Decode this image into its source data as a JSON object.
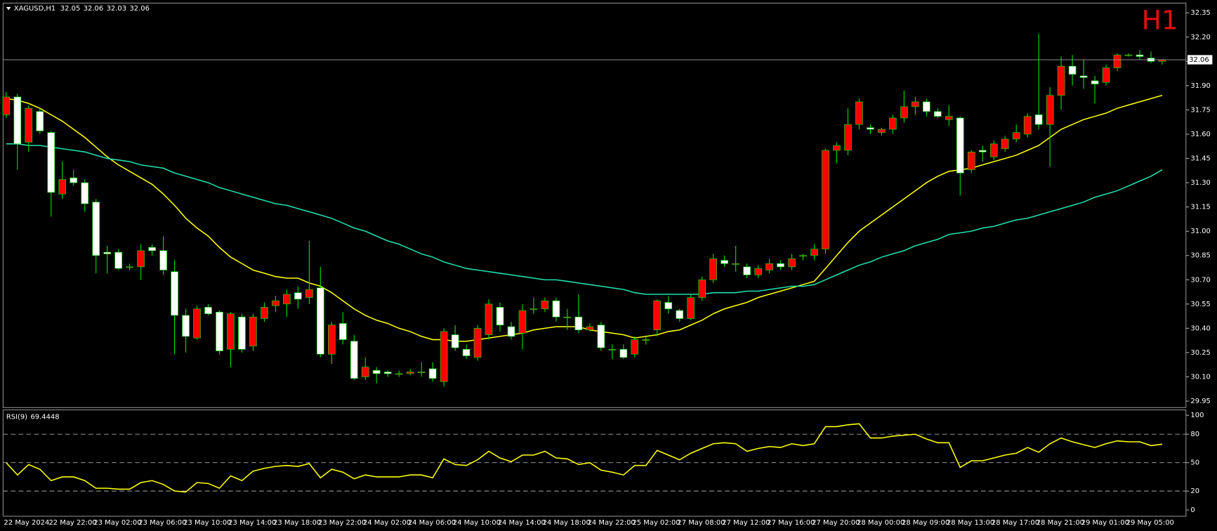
{
  "chart_data": [
    {
      "type": "candlestick",
      "symbol": "XAGUSD,H1",
      "timeframe_label": "H1",
      "categories": [
        "22 May 2024",
        null,
        null,
        null,
        "22 May 22:00",
        null,
        null,
        null,
        "23 May 02:00",
        null,
        null,
        null,
        "23 May 06:00",
        null,
        null,
        null,
        "23 May 10:00",
        null,
        null,
        null,
        "23 May 14:00",
        null,
        null,
        null,
        "23 May 18:00",
        null,
        null,
        null,
        "23 May 22:00",
        null,
        null,
        null,
        "24 May 02:00",
        null,
        null,
        null,
        "24 May 06:00",
        null,
        null,
        null,
        "24 May 10:00",
        null,
        null,
        null,
        "24 May 14:00",
        null,
        null,
        null,
        "24 May 18:00",
        null,
        null,
        null,
        "24 May 22:00",
        null,
        null,
        null,
        "25 May 02:00",
        null,
        null,
        null,
        "27 May 08:00",
        null,
        null,
        null,
        "27 May 12:00",
        null,
        null,
        null,
        "27 May 16:00",
        null,
        null,
        null,
        "27 May 20:00",
        null,
        null,
        null,
        "28 May 00:00",
        null,
        null,
        null,
        "28 May 09:00",
        null,
        null,
        null,
        "28 May 13:00",
        null,
        null,
        null,
        "28 May 17:00",
        null,
        null,
        null,
        "28 May 21:00",
        null,
        null,
        null,
        "29 May 01:00",
        null,
        null,
        null,
        "29 May 05:00",
        null,
        null,
        null
      ],
      "open": [
        31.72,
        31.83,
        31.55,
        31.74,
        31.61,
        31.23,
        31.33,
        31.3,
        31.18,
        30.87,
        30.87,
        30.78,
        30.78,
        30.9,
        30.88,
        30.75,
        30.48,
        30.34,
        30.53,
        30.5,
        30.27,
        30.47,
        30.29,
        30.46,
        30.54,
        30.55,
        30.62,
        30.59,
        30.65,
        30.24,
        30.43,
        30.32,
        30.1,
        30.14,
        30.13,
        30.12,
        30.12,
        30.13,
        30.15,
        30.07,
        30.36,
        30.27,
        30.22,
        30.36,
        30.53,
        30.41,
        30.37,
        30.52,
        30.52,
        30.57,
        30.47,
        30.47,
        30.39,
        30.42,
        30.27,
        30.27,
        30.24,
        30.33,
        30.39,
        30.56,
        30.51,
        30.46,
        30.59,
        30.7,
        30.82,
        30.8,
        30.78,
        30.73,
        30.76,
        30.8,
        30.78,
        30.85,
        30.85,
        30.89,
        31.5,
        31.5,
        31.66,
        31.64,
        31.61,
        31.63,
        31.7,
        31.77,
        31.8,
        31.74,
        31.69,
        31.7,
        31.38,
        31.5,
        31.46,
        31.51,
        31.57,
        31.6,
        31.72,
        31.66,
        31.84,
        32.02,
        31.96,
        31.93,
        31.92,
        32.01,
        32.09,
        32.09,
        32.07,
        32.05
      ],
      "high": [
        31.86,
        31.85,
        31.78,
        31.76,
        31.62,
        31.43,
        31.38,
        31.32,
        31.2,
        30.91,
        30.89,
        30.8,
        30.92,
        30.92,
        30.97,
        30.82,
        30.52,
        30.54,
        30.55,
        30.51,
        30.5,
        30.49,
        30.49,
        30.56,
        30.6,
        30.64,
        30.66,
        30.94,
        30.78,
        30.44,
        30.5,
        30.36,
        30.22,
        30.16,
        30.14,
        30.14,
        30.15,
        30.19,
        30.19,
        30.4,
        30.42,
        30.3,
        30.42,
        30.58,
        30.56,
        30.44,
        30.55,
        30.59,
        30.59,
        30.59,
        30.52,
        30.61,
        30.43,
        30.44,
        30.3,
        30.3,
        30.35,
        30.35,
        30.58,
        30.6,
        30.52,
        30.61,
        30.72,
        30.86,
        30.85,
        30.91,
        30.8,
        30.79,
        30.83,
        30.82,
        30.86,
        30.86,
        30.92,
        31.51,
        31.55,
        31.76,
        31.82,
        31.66,
        31.64,
        31.72,
        31.87,
        31.83,
        31.82,
        31.76,
        31.78,
        31.71,
        31.5,
        31.53,
        31.56,
        31.59,
        31.66,
        31.73,
        32.22,
        31.89,
        32.08,
        32.09,
        32.06,
        31.96,
        32.03,
        32.1,
        32.1,
        32.12,
        32.11,
        32.06
      ],
      "low": [
        31.7,
        31.38,
        31.49,
        31.6,
        31.09,
        31.2,
        31.28,
        31.12,
        30.74,
        30.74,
        30.76,
        30.76,
        30.7,
        30.85,
        30.73,
        30.24,
        30.25,
        30.33,
        30.48,
        30.24,
        30.16,
        30.25,
        30.26,
        30.44,
        30.5,
        30.47,
        30.52,
        30.55,
        30.22,
        30.18,
        30.3,
        30.08,
        30.08,
        30.06,
        30.1,
        30.1,
        30.11,
        30.1,
        30.07,
        30.04,
        30.26,
        30.21,
        30.2,
        30.33,
        30.38,
        30.33,
        30.27,
        30.49,
        30.5,
        30.44,
        30.39,
        30.37,
        30.38,
        30.26,
        30.21,
        30.21,
        30.22,
        30.3,
        30.35,
        30.49,
        30.44,
        30.45,
        30.57,
        30.68,
        30.78,
        30.75,
        30.71,
        30.71,
        30.74,
        30.76,
        30.76,
        30.82,
        30.82,
        30.86,
        31.42,
        31.47,
        31.63,
        31.6,
        31.59,
        31.6,
        31.67,
        31.72,
        31.71,
        31.7,
        31.65,
        31.22,
        31.36,
        31.43,
        31.44,
        31.49,
        31.55,
        31.58,
        31.63,
        31.4,
        31.75,
        31.9,
        31.88,
        31.79,
        31.9,
        31.99,
        32.08,
        32.06,
        32.04,
        32.03
      ],
      "close": [
        31.83,
        31.54,
        31.76,
        31.62,
        31.24,
        31.32,
        31.3,
        31.17,
        30.85,
        30.86,
        30.77,
        30.78,
        30.88,
        30.88,
        30.76,
        30.48,
        30.35,
        30.52,
        30.49,
        30.26,
        30.49,
        30.27,
        30.47,
        30.53,
        30.57,
        30.61,
        30.58,
        30.64,
        30.24,
        30.42,
        30.33,
        30.09,
        30.16,
        30.12,
        30.12,
        30.12,
        30.13,
        30.13,
        30.09,
        30.38,
        30.28,
        30.23,
        30.4,
        30.55,
        30.42,
        30.35,
        30.51,
        30.52,
        30.57,
        30.47,
        30.47,
        30.39,
        30.41,
        30.28,
        30.27,
        30.22,
        30.33,
        30.33,
        30.57,
        30.52,
        30.46,
        30.59,
        30.7,
        30.83,
        30.8,
        30.8,
        30.73,
        30.77,
        30.8,
        30.78,
        30.83,
        30.85,
        30.89,
        31.5,
        31.53,
        31.66,
        31.8,
        31.63,
        31.63,
        31.7,
        31.77,
        31.8,
        31.74,
        31.71,
        31.71,
        31.36,
        31.49,
        31.49,
        31.54,
        31.57,
        31.61,
        31.71,
        31.66,
        31.84,
        32.02,
        31.97,
        31.95,
        31.91,
        32.01,
        32.09,
        32.09,
        32.08,
        32.05,
        32.06
      ],
      "bull_color": "#ff0000",
      "bear_color": "#ffffff",
      "wick_color": "#00e000",
      "overlays": [
        {
          "color": "#ffff00",
          "values": [
            31.82,
            31.81,
            31.79,
            31.76,
            31.72,
            31.68,
            31.63,
            31.58,
            31.52,
            31.46,
            31.41,
            31.37,
            31.33,
            31.29,
            31.23,
            31.16,
            31.08,
            31.02,
            30.97,
            30.9,
            30.84,
            30.8,
            30.76,
            30.74,
            30.72,
            30.71,
            30.71,
            30.68,
            30.66,
            30.62,
            30.57,
            30.52,
            30.48,
            30.45,
            30.43,
            30.4,
            30.38,
            30.35,
            30.33,
            30.33,
            30.32,
            30.32,
            30.33,
            30.34,
            30.35,
            30.36,
            30.37,
            30.39,
            30.4,
            30.41,
            30.41,
            30.41,
            30.39,
            30.38,
            30.37,
            30.36,
            30.34,
            30.35,
            30.36,
            30.38,
            30.39,
            30.42,
            30.45,
            30.49,
            30.52,
            30.54,
            30.56,
            30.59,
            30.61,
            30.63,
            30.65,
            30.67,
            30.69,
            30.77,
            30.85,
            30.93,
            31.0,
            31.05,
            31.1,
            31.15,
            31.2,
            31.25,
            31.3,
            31.34,
            31.37,
            31.38,
            31.39,
            31.41,
            31.43,
            31.45,
            31.47,
            31.5,
            31.53,
            31.58,
            31.63,
            31.66,
            31.69,
            31.71,
            31.73,
            31.76,
            31.78,
            31.8,
            31.82,
            31.84
          ]
        },
        {
          "color": "#20e0b0",
          "values": [
            31.54,
            31.54,
            31.53,
            31.53,
            31.52,
            31.51,
            31.5,
            31.49,
            31.47,
            31.45,
            31.44,
            31.43,
            31.41,
            31.4,
            31.39,
            31.36,
            31.34,
            31.32,
            31.3,
            31.27,
            31.25,
            31.23,
            31.21,
            31.19,
            31.17,
            31.16,
            31.14,
            31.12,
            31.1,
            31.08,
            31.05,
            31.02,
            31.0,
            30.97,
            30.94,
            30.92,
            30.89,
            30.86,
            30.84,
            30.81,
            30.79,
            30.77,
            30.76,
            30.75,
            30.74,
            30.73,
            30.72,
            30.71,
            30.7,
            30.7,
            30.69,
            30.68,
            30.67,
            30.66,
            30.65,
            30.64,
            30.62,
            30.61,
            30.61,
            30.61,
            30.61,
            30.61,
            30.61,
            30.62,
            30.62,
            30.62,
            30.63,
            30.63,
            30.64,
            30.65,
            30.66,
            30.66,
            30.67,
            30.7,
            30.73,
            30.76,
            30.79,
            30.81,
            30.84,
            30.86,
            30.88,
            30.91,
            30.93,
            30.95,
            30.98,
            30.99,
            31.0,
            31.02,
            31.03,
            31.05,
            31.07,
            31.08,
            31.1,
            31.12,
            31.14,
            31.16,
            31.18,
            31.21,
            31.23,
            31.25,
            31.28,
            31.31,
            31.34,
            31.38
          ]
        }
      ],
      "ylim": [
        29.91,
        32.41
      ],
      "yticks": [
        32.35,
        {
          "value": 32.2,
          "label": "32.20"
        },
        32.05,
        {
          "value": 31.9,
          "label": "31.90"
        },
        31.75,
        {
          "value": 31.6,
          "label": "31.60"
        },
        31.45,
        {
          "value": 31.3,
          "label": "31.30"
        },
        31.15,
        {
          "value": 31.0,
          "label": "31.00"
        },
        30.85,
        {
          "value": 30.7,
          "label": "30.70"
        },
        30.55,
        {
          "value": 30.4,
          "label": "30.40"
        },
        30.25,
        {
          "value": 30.1,
          "label": "30.10"
        },
        29.95
      ],
      "last_price_line": true
    },
    {
      "type": "line",
      "label": "RSI(9)",
      "values": [
        50,
        37,
        48,
        43,
        31,
        35,
        35,
        31,
        23,
        23,
        22,
        22,
        29,
        31,
        27,
        20,
        19,
        29,
        28,
        23,
        36,
        31,
        41,
        44,
        46,
        47,
        46,
        49,
        34,
        43,
        40,
        33,
        37,
        35,
        35,
        35,
        37,
        37,
        34,
        54,
        48,
        47,
        53,
        62,
        55,
        51,
        58,
        58,
        62,
        55,
        54,
        48,
        50,
        42,
        40,
        37,
        47,
        47,
        63,
        58,
        53,
        60,
        65,
        70,
        71,
        70,
        62,
        65,
        67,
        66,
        70,
        68,
        70,
        88,
        88,
        90,
        91,
        76,
        76,
        78,
        79,
        80,
        75,
        71,
        71,
        45,
        52,
        52,
        55,
        58,
        60,
        66,
        61,
        70,
        76,
        72,
        69,
        66,
        70,
        73,
        72,
        72,
        68,
        69.4448
      ],
      "color": "#ffff00",
      "ylim": [
        -6.6,
        105.7
      ],
      "yticks": [
        100,
        80,
        50,
        20,
        0
      ],
      "levels": [
        80,
        50,
        20
      ]
    }
  ]
}
